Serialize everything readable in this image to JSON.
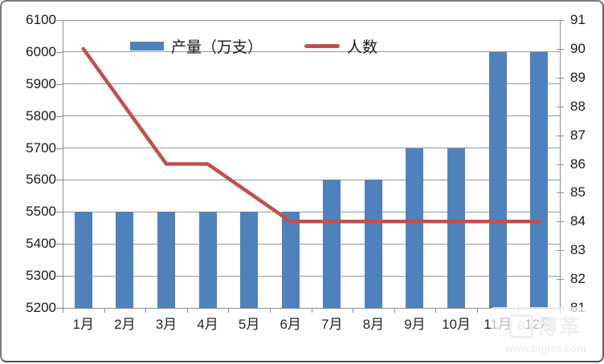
{
  "chart_data": {
    "type": "combo",
    "title": "",
    "categories": [
      "1月",
      "2月",
      "3月",
      "4月",
      "5月",
      "6月",
      "7月",
      "8月",
      "9月",
      "10月",
      "11月",
      "12月"
    ],
    "series": [
      {
        "name": "产量（万支）",
        "type": "bar",
        "axis": "left",
        "color": "#4F81BD",
        "values": [
          5500,
          5500,
          5500,
          5500,
          5500,
          5500,
          5600,
          5600,
          5700,
          5700,
          6000,
          6000
        ]
      },
      {
        "name": "人数",
        "type": "line",
        "axis": "right",
        "color": "#C0504D",
        "values": [
          90,
          88,
          86,
          86,
          85,
          84,
          84,
          84,
          84,
          84,
          84,
          84
        ]
      }
    ],
    "left_axis": {
      "min": 5200,
      "max": 6100,
      "step": 100,
      "ticks": [
        "5200",
        "5300",
        "5400",
        "5500",
        "5600",
        "5700",
        "5800",
        "5900",
        "6000",
        "6100"
      ]
    },
    "right_axis": {
      "min": 81,
      "max": 91,
      "step": 1,
      "ticks": [
        "81",
        "82",
        "83",
        "84",
        "85",
        "86",
        "87",
        "88",
        "89",
        "90",
        "91"
      ]
    },
    "grid": true,
    "legend_position": "top"
  },
  "watermark": {
    "logo_letter": "B",
    "logo_text": "博革",
    "url_text": "www.biglss.com"
  },
  "colors": {
    "bar": "#4F81BD",
    "line": "#C0504D",
    "grid": "#989898",
    "axis": "#8C8C8C",
    "text": "#1A1A1A"
  }
}
